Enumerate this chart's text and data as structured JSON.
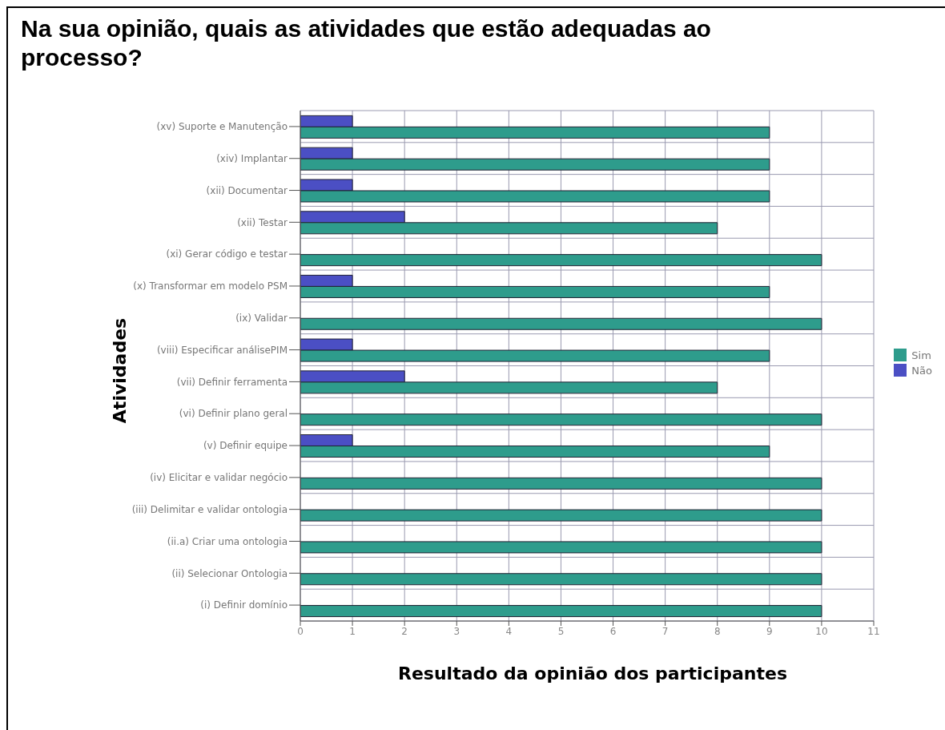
{
  "chart_data": {
    "type": "bar",
    "orientation": "horizontal",
    "title": "Na sua opinião, quais as atividades que estão adequadas ao processo?",
    "xlabel": "Resultado da opinião dos participantes",
    "ylabel": "Atividades",
    "categories": [
      "(xv) Suporte e Manutenção",
      "(xiv) Implantar",
      "(xii) Documentar",
      "(xii) Testar",
      "(xi) Gerar código e testar",
      "(x) Transformar em modelo PSM",
      "(ix) Validar",
      "(viii) Especificar análisePIM",
      "(vii) Definir  ferramenta",
      "(vi) Definir plano geral",
      "(v) Definir equipe",
      "(iv) Elicitar e validar negócio",
      "(iii) Delimitar e validar ontologia",
      "(ii.a) Criar uma ontologia",
      "(ii) Selecionar Ontologia",
      "(i) Definir domínio"
    ],
    "series": [
      {
        "name": "Sim",
        "color": "#2e9c8c",
        "values": [
          9,
          9,
          9,
          8,
          10,
          9,
          10,
          9,
          8,
          10,
          9,
          10,
          10,
          10,
          10,
          10
        ]
      },
      {
        "name": "Não",
        "color": "#4b4fc4",
        "values": [
          1,
          1,
          1,
          2,
          0,
          1,
          0,
          1,
          2,
          0,
          1,
          0,
          0,
          0,
          0,
          0
        ]
      }
    ],
    "xlim": [
      0,
      11
    ],
    "xticks": [
      0,
      1,
      2,
      3,
      4,
      5,
      6,
      7,
      8,
      9,
      10,
      11
    ],
    "grid": true,
    "legend": "right"
  }
}
